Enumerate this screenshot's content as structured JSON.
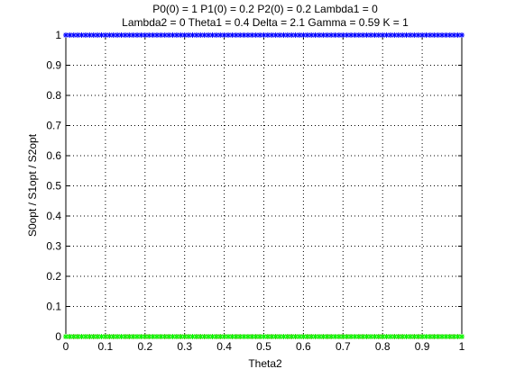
{
  "chart_data": {
    "type": "line",
    "title_lines": [
      "P0(0) = 1 P1(0) = 0.2 P2(0) = 0.2 Lambda1 = 0",
      "Lambda2 = 0 Theta1 = 0.4 Delta = 2.1 Gamma = 0.59 K = 1"
    ],
    "xlabel": "Theta2",
    "ylabel": "S0opt / S1opt / S2opt",
    "xlim": [
      0,
      1
    ],
    "ylim": [
      0,
      1
    ],
    "xticks": [
      "0",
      "0.1",
      "0.2",
      "0.3",
      "0.4",
      "0.5",
      "0.6",
      "0.7",
      "0.8",
      "0.9",
      "1"
    ],
    "yticks": [
      "0",
      "0.1",
      "0.2",
      "0.3",
      "0.4",
      "0.5",
      "0.6",
      "0.7",
      "0.8",
      "0.9",
      "1"
    ],
    "grid": true,
    "x": [
      0,
      0.01,
      0.02,
      0.03,
      0.04,
      0.05,
      0.06,
      0.07,
      0.08,
      0.09,
      0.1,
      0.11,
      0.12,
      0.13,
      0.14,
      0.15,
      0.16,
      0.17,
      0.18,
      0.19,
      0.2,
      0.21,
      0.22,
      0.23,
      0.24,
      0.25,
      0.26,
      0.27,
      0.28,
      0.29,
      0.3,
      0.31,
      0.32,
      0.33,
      0.34,
      0.35,
      0.36,
      0.37,
      0.38,
      0.39,
      0.4,
      0.41,
      0.42,
      0.43,
      0.44,
      0.45,
      0.46,
      0.47,
      0.48,
      0.49,
      0.5,
      0.51,
      0.52,
      0.53,
      0.54,
      0.55,
      0.56,
      0.57,
      0.58,
      0.59,
      0.6,
      0.61,
      0.62,
      0.63,
      0.64,
      0.65,
      0.66,
      0.67,
      0.68,
      0.69,
      0.7,
      0.71,
      0.72,
      0.73,
      0.74,
      0.75,
      0.76,
      0.77,
      0.78,
      0.79,
      0.8,
      0.81,
      0.82,
      0.83,
      0.84,
      0.85,
      0.86,
      0.87,
      0.88,
      0.89,
      0.9,
      0.91,
      0.92,
      0.93,
      0.94,
      0.95,
      0.96,
      0.97,
      0.98,
      0.99,
      1
    ],
    "series": [
      {
        "color": "#0000ff",
        "marker": "*",
        "value": 1
      },
      {
        "color": "#ff0000",
        "marker": "*",
        "value": 0
      },
      {
        "color": "#00ff00",
        "marker": "*",
        "value": 0
      }
    ]
  }
}
